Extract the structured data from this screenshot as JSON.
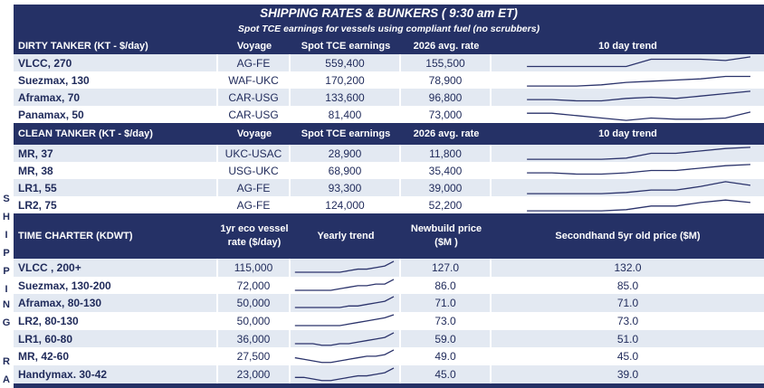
{
  "side_label": [
    "S",
    "H",
    "I",
    "P",
    "P",
    "I",
    "N",
    "G",
    "",
    "R",
    "A"
  ],
  "title": "SHIPPING RATES & BUNKERS ( 9:30 am ET)",
  "subtitle": "Spot TCE earnings for vessels using compliant fuel (no scrubbers)",
  "line_color": "#2b336b",
  "dirty": {
    "headers": [
      "DIRTY TANKER (KT - $/day)",
      "Voyage",
      "Spot TCE earnings",
      "2026 avg. rate",
      "10 day trend"
    ],
    "rows": [
      {
        "name": "VLCC, 270",
        "voyage": "AG-FE",
        "spot": "559,400",
        "avg": "155,500",
        "trend": [
          2,
          2,
          2,
          2,
          2,
          8,
          8,
          8,
          7,
          10
        ]
      },
      {
        "name": "Suezmax, 130",
        "voyage": "WAF-UKC",
        "spot": "170,200",
        "avg": "78,900",
        "trend": [
          0,
          0,
          0,
          1,
          3,
          4,
          5,
          6,
          8,
          8
        ]
      },
      {
        "name": "Aframax, 70",
        "voyage": "CAR-USG",
        "spot": "133,600",
        "avg": "96,800",
        "trend": [
          3,
          3,
          2,
          2,
          4,
          5,
          4,
          6,
          8,
          10
        ]
      },
      {
        "name": "Panamax, 50",
        "voyage": "CAR-USG",
        "spot": "81,400",
        "avg": "73,000",
        "trend": [
          6,
          6,
          4,
          2,
          0,
          2,
          1,
          1,
          2,
          7
        ]
      }
    ]
  },
  "clean": {
    "headers": [
      "CLEAN TANKER (KT - $/day)",
      "Voyage",
      "Spot TCE earnings",
      "2026 avg. rate",
      "10 day trend"
    ],
    "rows": [
      {
        "name": "MR, 37",
        "voyage": "UKC-USAC",
        "spot": "28,900",
        "avg": "11,800",
        "trend": [
          0,
          0,
          0,
          0,
          1,
          5,
          5,
          7,
          9,
          10
        ]
      },
      {
        "name": "MR, 38",
        "voyage": "USG-UKC",
        "spot": "68,900",
        "avg": "35,400",
        "trend": [
          3,
          3,
          2,
          2,
          3,
          5,
          5,
          7,
          9,
          10
        ]
      },
      {
        "name": "LR1, 55",
        "voyage": "AG-FE",
        "spot": "93,300",
        "avg": "39,000",
        "trend": [
          0,
          0,
          0,
          0,
          1,
          3,
          3,
          6,
          10,
          7
        ]
      },
      {
        "name": "LR2, 75",
        "voyage": "AG-FE",
        "spot": "124,000",
        "avg": "52,200",
        "trend": [
          0,
          0,
          0,
          0,
          1,
          4,
          4,
          7,
          9,
          7
        ]
      }
    ]
  },
  "time_charter": {
    "headers": [
      "TIME CHARTER (KDWT)",
      "1yr eco vessel rate ($/day)",
      "Yearly trend",
      "Newbuild price ($M )",
      "Secondhand 5yr old price ($M)"
    ],
    "rows": [
      {
        "name": "VLCC , 200+",
        "rate": "115,000",
        "newbuild": "127.0",
        "secondhand": "132.0",
        "trend": [
          1,
          1,
          1,
          1,
          1,
          1,
          2,
          3,
          3,
          4,
          5,
          8
        ]
      },
      {
        "name": "Suezmax, 130-200",
        "rate": "72,000",
        "newbuild": "86.0",
        "secondhand": "85.0",
        "trend": [
          1,
          1,
          1,
          1,
          1,
          2,
          3,
          4,
          4,
          5,
          5,
          8
        ]
      },
      {
        "name": "Aframax, 80-130",
        "rate": "50,000",
        "newbuild": "71.0",
        "secondhand": "71.0",
        "trend": [
          1,
          1,
          1,
          1,
          1,
          1,
          2,
          2,
          3,
          4,
          5,
          8
        ]
      },
      {
        "name": "LR2, 80-130",
        "rate": "50,000",
        "newbuild": "73.0",
        "secondhand": "73.0",
        "trend": [
          1,
          1,
          1,
          1,
          1,
          1,
          2,
          3,
          4,
          5,
          6,
          8
        ]
      },
      {
        "name": "LR1, 60-80",
        "rate": "36,000",
        "newbuild": "59.0",
        "secondhand": "51.0",
        "trend": [
          1,
          1,
          1,
          0,
          0,
          1,
          1,
          2,
          3,
          4,
          5,
          8
        ]
      },
      {
        "name": "MR, 42-60",
        "rate": "27,500",
        "newbuild": "49.0",
        "secondhand": "45.0",
        "trend": [
          3,
          2,
          1,
          0,
          0,
          1,
          2,
          3,
          4,
          4,
          5,
          8
        ]
      },
      {
        "name": "Handymax. 30-42",
        "rate": "23,000",
        "newbuild": "45.0",
        "secondhand": "39.0",
        "trend": [
          2,
          2,
          1,
          0,
          0,
          1,
          2,
          3,
          3,
          4,
          5,
          8
        ]
      }
    ]
  }
}
